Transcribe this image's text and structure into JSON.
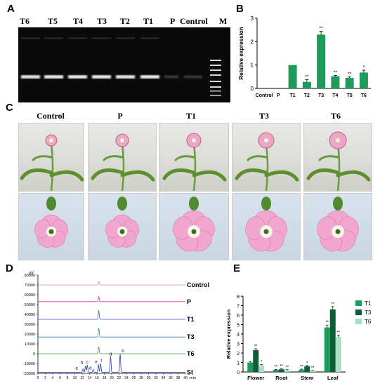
{
  "panels": {
    "A": "A",
    "B": "B",
    "C": "C",
    "D": "D",
    "E": "E"
  },
  "panel_a": {
    "lanes": [
      "T6",
      "T5",
      "T4",
      "T3",
      "T2",
      "T1",
      "P",
      "Control",
      "M"
    ]
  },
  "panel_c": {
    "columns": [
      "Control",
      "P",
      "T1",
      "T3",
      "T6"
    ]
  },
  "panel_d": {
    "unit": "uV",
    "xunit": "min",
    "trace_labels": [
      "Control",
      "P",
      "T1",
      "T3",
      "T6",
      "St"
    ],
    "peak_labels": [
      "a",
      "b",
      "c",
      "d",
      "e",
      "f",
      "g",
      "h"
    ]
  },
  "chart_data": [
    {
      "type": "bar",
      "panel": "B",
      "ylabel": "Relative expression",
      "xlabel": "",
      "categories": [
        "Control",
        "P",
        "T1",
        "T2",
        "T3",
        "T4",
        "T5",
        "T6"
      ],
      "values": [
        0,
        0,
        1.0,
        0.28,
        2.3,
        0.52,
        0.45,
        0.68
      ],
      "errors": [
        0,
        0,
        0,
        0.1,
        0.15,
        0.04,
        0.05,
        0.1
      ],
      "significance": [
        "",
        "",
        "",
        "**",
        "**",
        "**",
        "**",
        "*"
      ],
      "ylim": [
        0,
        3
      ],
      "yticks": [
        0,
        1,
        2,
        3
      ],
      "color": "#1e9a5a"
    },
    {
      "type": "bar",
      "panel": "E",
      "ylabel": "Relative expression",
      "xlabel": "",
      "categories": [
        "Flower",
        "Root",
        "Stem",
        "Leaf"
      ],
      "series": [
        {
          "name": "T1",
          "values": [
            1.0,
            0.22,
            0.25,
            4.7
          ],
          "errors": [
            0.1,
            0.05,
            0.05,
            0.25
          ],
          "color": "#1e9a5a",
          "sig": [
            "",
            "**",
            "**",
            "**"
          ]
        },
        {
          "name": "T3",
          "values": [
            2.3,
            0.28,
            0.6,
            6.6
          ],
          "errors": [
            0.15,
            0.05,
            0.08,
            0.3
          ],
          "color": "#0b5e36",
          "sig": [
            "**",
            "**",
            "*",
            "**"
          ]
        },
        {
          "name": "T6",
          "values": [
            0.7,
            0.2,
            0.12,
            3.7
          ],
          "errors": [
            0.08,
            0.04,
            0.03,
            0.2
          ],
          "color": "#a8e0c2",
          "sig": [
            "*",
            "**",
            "**",
            "**"
          ]
        }
      ],
      "ylim": [
        0,
        8
      ],
      "yticks": [
        0,
        1,
        2,
        3,
        4,
        5,
        6,
        7,
        8
      ]
    },
    {
      "type": "line",
      "panel": "D",
      "ylabel": "uV",
      "xlabel": "min",
      "ylim": [
        -20000,
        80000
      ],
      "yticks": [
        80000,
        70000,
        60000,
        50000,
        40000,
        30000,
        20000,
        10000,
        0,
        -10000,
        -20000
      ],
      "xlim": [
        0,
        40
      ],
      "xticks": [
        0,
        2,
        4,
        6,
        8,
        10,
        12,
        14,
        16,
        18,
        20,
        22,
        24,
        26,
        28,
        30,
        32,
        34,
        36,
        38,
        40
      ],
      "series": [
        {
          "name": "Control",
          "baseline": 70000,
          "color": "#e4899c",
          "peaks": [
            [
              16.5,
              3500
            ]
          ]
        },
        {
          "name": "P",
          "baseline": 53000,
          "color": "#d431b8",
          "peaks": [
            [
              16.5,
              5000
            ]
          ]
        },
        {
          "name": "T1",
          "baseline": 35000,
          "color": "#3b57c9",
          "peaks": [
            [
              16.5,
              9000
            ]
          ]
        },
        {
          "name": "T3",
          "baseline": 17000,
          "color": "#2c80d0",
          "peaks": [
            [
              16.5,
              9000
            ]
          ]
        },
        {
          "name": "T6",
          "baseline": 0,
          "color": "#3a9a3a",
          "peaks": [
            [
              16.5,
              7000
            ]
          ]
        },
        {
          "name": "St",
          "baseline": -19000,
          "color": "#283ca0",
          "peaks": [
            [
              12.2,
              3500
            ],
            [
              12.9,
              6500
            ],
            [
              13.4,
              7500
            ],
            [
              15.0,
              3000
            ],
            [
              16.4,
              8000
            ],
            [
              17.0,
              9000
            ],
            [
              19.7,
              16000
            ],
            [
              22.3,
              19000
            ]
          ]
        }
      ]
    }
  ]
}
